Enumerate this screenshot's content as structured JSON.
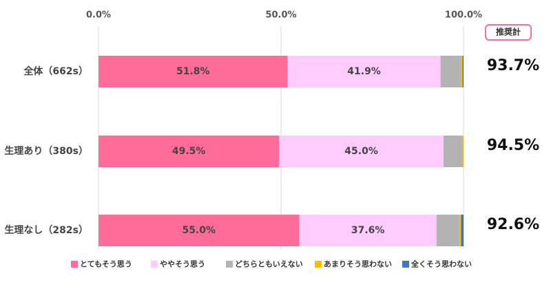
{
  "chart_data": {
    "type": "stacked-bar-horizontal",
    "categories": [
      "全体（662s）",
      "生理あり（380s）",
      "生理なし（282s）"
    ],
    "series": [
      {
        "name": "とてもそう思う",
        "color": "#ff6b9a",
        "values": [
          51.8,
          49.5,
          55.0
        ],
        "value_labels": [
          "51.8%",
          "49.5%",
          "55.0%"
        ]
      },
      {
        "name": "ややそう思う",
        "color": "#ffccff",
        "values": [
          41.9,
          45.0,
          37.6
        ],
        "value_labels": [
          "41.9%",
          "45.0%",
          "37.6%"
        ]
      },
      {
        "name": "どちらともいえない",
        "color": "#b3b3b3",
        "values": [
          5.7,
          5.3,
          6.4
        ]
      },
      {
        "name": "あまりそう思わない",
        "color": "#ffc000",
        "values": [
          0.3,
          0.2,
          0.3
        ]
      },
      {
        "name": "全くそう思わない",
        "color": "#4472c4",
        "values": [
          0.3,
          0.0,
          0.7
        ]
      }
    ],
    "xlim": [
      0,
      100
    ],
    "xticks": [
      {
        "value": 0,
        "label": "0.0%"
      },
      {
        "value": 50,
        "label": "50.0%"
      },
      {
        "value": 100,
        "label": "100.0%"
      }
    ],
    "grid": true,
    "legend": "bottom",
    "recommend_title": "推奨計",
    "recommend_labels": [
      "93.7%",
      "94.5%",
      "92.6%"
    ]
  }
}
